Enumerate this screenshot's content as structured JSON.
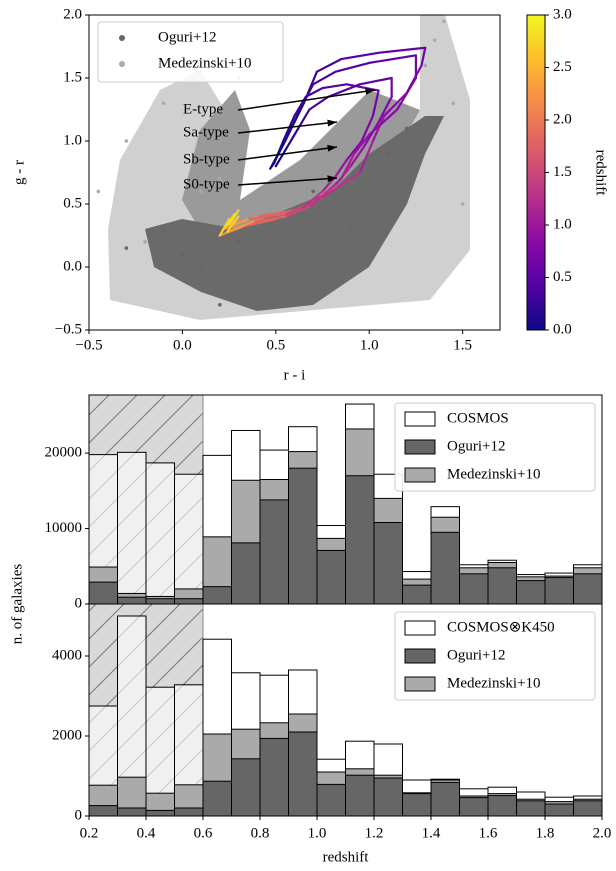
{
  "chart_data": [
    {
      "type": "scatter",
      "xlabel": "r - i",
      "ylabel": "g - r",
      "xlim": [
        -0.5,
        1.7
      ],
      "ylim": [
        -0.5,
        2.0
      ],
      "xticks": [
        {
          "value": -0.5,
          "label": "−0.5"
        },
        {
          "value": 0,
          "label": "0.0"
        },
        0.5,
        {
          "value": 1,
          "label": "1.0"
        },
        1.5
      ],
      "yticks": [
        {
          "value": -0.5,
          "label": "−0.5"
        },
        {
          "value": 0,
          "label": "0.0"
        },
        0.5,
        {
          "value": 1,
          "label": "1.0"
        },
        1.5,
        {
          "value": 2,
          "label": "2.0"
        }
      ],
      "legend": "upper left",
      "series": [
        {
          "name": "Oguri+12",
          "color": "#666666",
          "x": [
            -0.3,
            -0.1,
            0.1,
            0.3,
            0.5,
            0.7,
            0.9,
            1.1,
            1.2,
            0.6,
            0.2,
            0.0
          ],
          "y": [
            0.15,
            0.3,
            0.0,
            0.2,
            0.4,
            0.6,
            0.3,
            0.9,
            1.1,
            -0.1,
            -0.3,
            0.1
          ]
        },
        {
          "name": "Medezinski+10",
          "color": "#aaaaaa",
          "x": [
            -0.45,
            -0.3,
            -0.1,
            0.1,
            0.3,
            1.35,
            1.4,
            1.45,
            0.2,
            1.5,
            -0.2,
            1.3
          ],
          "y": [
            0.6,
            1.0,
            1.3,
            0.6,
            1.5,
            1.8,
            1.95,
            1.3,
            0.7,
            0.5,
            0.2,
            1.6
          ]
        }
      ],
      "tracks": [
        {
          "name": "E-type",
          "z": [
            0,
            0.1,
            0.2,
            0.3,
            0.4,
            0.5,
            0.6,
            0.7,
            0.8,
            0.9,
            1.0,
            1.2,
            1.4,
            1.6,
            2.0,
            2.5,
            3.0
          ],
          "x": [
            0.47,
            0.55,
            0.65,
            0.72,
            0.85,
            1.05,
            1.3,
            1.28,
            1.2,
            1.08,
            1.02,
            0.95,
            0.75,
            0.6,
            0.4,
            0.25,
            0.3
          ],
          "y": [
            0.78,
            1.0,
            1.3,
            1.55,
            1.65,
            1.7,
            1.74,
            1.6,
            1.38,
            1.2,
            1.0,
            0.75,
            0.55,
            0.45,
            0.4,
            0.33,
            0.45
          ]
        },
        {
          "name": "Sa-type",
          "z": [
            0,
            0.1,
            0.2,
            0.3,
            0.4,
            0.5,
            0.6,
            0.7,
            0.8,
            0.9,
            1.0,
            1.2,
            1.4,
            1.6,
            2.0,
            2.5,
            3.0
          ],
          "x": [
            0.48,
            0.55,
            0.63,
            0.7,
            0.82,
            1.0,
            1.25,
            1.25,
            1.15,
            1.0,
            0.92,
            0.85,
            0.7,
            0.55,
            0.35,
            0.22,
            0.28
          ],
          "y": [
            0.8,
            1.0,
            1.25,
            1.45,
            1.55,
            1.62,
            1.68,
            1.5,
            1.25,
            1.05,
            0.9,
            0.7,
            0.5,
            0.42,
            0.38,
            0.3,
            0.42
          ]
        },
        {
          "name": "Sb-type",
          "z": [
            0,
            0.1,
            0.2,
            0.3,
            0.4,
            0.5,
            0.6,
            0.7,
            0.8,
            0.9,
            1.0,
            1.2,
            1.4,
            1.6,
            2.0,
            2.5,
            3.0
          ],
          "x": [
            0.49,
            0.54,
            0.6,
            0.66,
            0.75,
            0.88,
            1.05,
            1.02,
            0.96,
            0.88,
            0.82,
            0.75,
            0.63,
            0.5,
            0.32,
            0.2,
            0.25
          ],
          "y": [
            0.82,
            1.0,
            1.2,
            1.35,
            1.42,
            1.45,
            1.4,
            1.2,
            1.0,
            0.85,
            0.72,
            0.6,
            0.45,
            0.38,
            0.32,
            0.25,
            0.38
          ]
        },
        {
          "name": "S0-type",
          "z": [
            0,
            0.1,
            0.2,
            0.3,
            0.4,
            0.5,
            0.6,
            0.7,
            0.8,
            0.9,
            1.0,
            1.2,
            1.4,
            1.6,
            2.0,
            2.5,
            3.0
          ],
          "x": [
            0.5,
            0.56,
            0.62,
            0.68,
            0.78,
            0.95,
            1.12,
            1.12,
            1.05,
            0.97,
            0.9,
            0.82,
            0.68,
            0.55,
            0.38,
            0.24,
            0.3
          ],
          "y": [
            0.8,
            0.95,
            1.1,
            1.25,
            1.35,
            1.45,
            1.5,
            1.35,
            1.15,
            0.95,
            0.8,
            0.65,
            0.48,
            0.4,
            0.36,
            0.28,
            0.4
          ]
        }
      ],
      "colorbar": {
        "label": "redshift",
        "colormap": "plasma",
        "lim": [
          0,
          3
        ],
        "ticks": [
          {
            "value": 0,
            "label": "0.0"
          },
          0.5,
          {
            "value": 1,
            "label": "1.0"
          },
          1.5,
          {
            "value": 2,
            "label": "2.0"
          },
          2.5,
          {
            "value": 3,
            "label": "3.0"
          }
        ]
      }
    },
    {
      "type": "histogram",
      "ylabel": "n. of galaxies",
      "bins": [
        0.2,
        0.3,
        0.4,
        0.5,
        0.6,
        0.7,
        0.8,
        0.9,
        1.0,
        1.1,
        1.2,
        1.3,
        1.4,
        1.5,
        1.6,
        1.7,
        1.8,
        1.9,
        2.0
      ],
      "xlim": [
        0.2,
        2.0
      ],
      "ylim": [
        0,
        27700
      ],
      "yticks": [
        0,
        10000,
        20000
      ],
      "shaded_region": [
        0.2,
        0.6
      ],
      "legend": "upper right",
      "series": [
        {
          "name": "COSMOS",
          "color": "#ffffff",
          "values": [
            19800,
            20100,
            18700,
            17200,
            19700,
            23000,
            20400,
            23500,
            10400,
            26500,
            17200,
            4300,
            12900,
            5200,
            5800,
            3900,
            4100,
            5200
          ]
        },
        {
          "name": "Oguri+12",
          "color": "#666666",
          "values": [
            2900,
            900,
            700,
            700,
            2300,
            8100,
            13800,
            18000,
            7100,
            17000,
            10800,
            2500,
            9500,
            4000,
            4800,
            3100,
            3500,
            4000
          ]
        },
        {
          "name": "Medezinski+10",
          "color": "#aaaaaa",
          "values": [
            4900,
            1400,
            1000,
            2000,
            8900,
            16400,
            16500,
            20200,
            8700,
            23200,
            14000,
            3300,
            11500,
            4800,
            5500,
            3600,
            3700,
            4800
          ]
        }
      ]
    },
    {
      "type": "histogram",
      "xlabel": "redshift",
      "bins": [
        0.2,
        0.3,
        0.4,
        0.5,
        0.6,
        0.7,
        0.8,
        0.9,
        1.0,
        1.1,
        1.2,
        1.3,
        1.4,
        1.5,
        1.6,
        1.7,
        1.8,
        1.9,
        2.0
      ],
      "xlim": [
        0.2,
        2.0
      ],
      "xticks": [
        0.2,
        0.4,
        0.6,
        0.8,
        {
          "value": 1,
          "label": "1.0"
        },
        1.2,
        1.4,
        1.6,
        1.8,
        {
          "value": 2,
          "label": "2.0"
        }
      ],
      "ylim": [
        0,
        5300
      ],
      "yticks": [
        0,
        2000,
        4000
      ],
      "shaded_region": [
        0.2,
        0.6
      ],
      "legend": "upper right",
      "series": [
        {
          "name": "COSMOS⊗K450",
          "color": "#ffffff",
          "values": [
            2750,
            5000,
            3220,
            3280,
            4420,
            3580,
            3520,
            3650,
            1420,
            1870,
            1800,
            900,
            920,
            680,
            720,
            600,
            470,
            500
          ]
        },
        {
          "name": "Oguri+12",
          "color": "#666666",
          "values": [
            260,
            200,
            140,
            200,
            870,
            1430,
            1940,
            2100,
            790,
            1020,
            950,
            560,
            840,
            460,
            510,
            380,
            300,
            380
          ]
        },
        {
          "name": "Medezinski+10",
          "color": "#aaaaaa",
          "values": [
            770,
            970,
            570,
            780,
            2050,
            2170,
            2330,
            2550,
            1100,
            1180,
            1020,
            580,
            900,
            500,
            560,
            420,
            360,
            420
          ]
        }
      ]
    }
  ]
}
